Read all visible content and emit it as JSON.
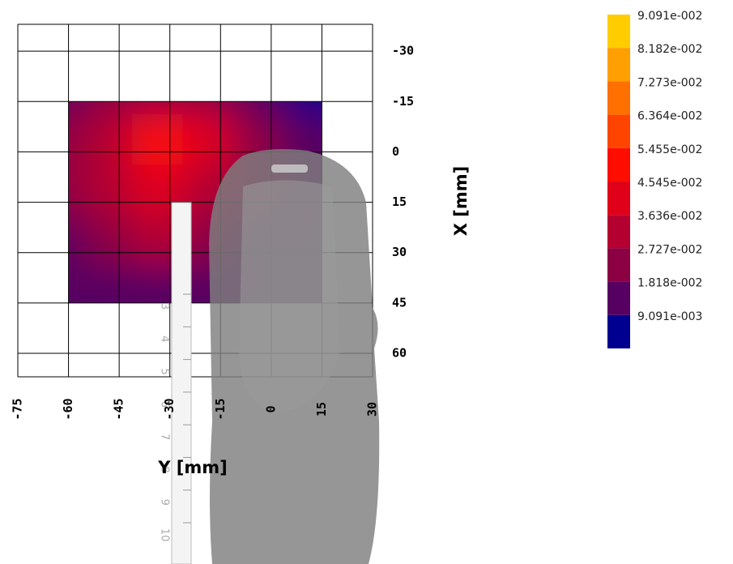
{
  "chart_data": {
    "type": "heatmap",
    "x_label": "Y [mm]",
    "y_label": "X [mm]",
    "xlim": [
      -75,
      30
    ],
    "xticks": [
      -75,
      -60,
      -45,
      -30,
      -15,
      0,
      15,
      30
    ],
    "ylim": [
      -38,
      67
    ],
    "yticks": [
      -30,
      -15,
      0,
      15,
      30,
      45,
      60
    ],
    "x": [
      -60,
      -45,
      -30,
      -15,
      0,
      15
    ],
    "y": [
      -15,
      0,
      15,
      30,
      45
    ],
    "z": [
      [
        0.018,
        0.022,
        0.025,
        0.022,
        0.012,
        0.009
      ],
      [
        0.025,
        0.033,
        0.05,
        0.04,
        0.02,
        0.01
      ],
      [
        0.025,
        0.035,
        0.042,
        0.033,
        0.02,
        0.015
      ],
      [
        0.018,
        0.025,
        0.028,
        0.025,
        0.018,
        0.015
      ],
      [
        0.012,
        0.015,
        0.015,
        0.015,
        0.012,
        0.012
      ]
    ],
    "grid": true,
    "colorbar": {
      "clim": [
        0,
        0.09091
      ],
      "ticks": [
        {
          "value": 0.09091,
          "label": "9.091e-002"
        },
        {
          "value": 0.08182,
          "label": "8.182e-002"
        },
        {
          "value": 0.07273,
          "label": "7.273e-002"
        },
        {
          "value": 0.06364,
          "label": "6.364e-002"
        },
        {
          "value": 0.05455,
          "label": "5.455e-002"
        },
        {
          "value": 0.04545,
          "label": "4.545e-002"
        },
        {
          "value": 0.03636,
          "label": "3.636e-002"
        },
        {
          "value": 0.02727,
          "label": "2.727e-002"
        },
        {
          "value": 0.01818,
          "label": "1.818e-002"
        },
        {
          "value": 0.009091,
          "label": "9.091e-003"
        }
      ],
      "colors": [
        "#ffcc00",
        "#ff9f00",
        "#ff7000",
        "#ff4400",
        "#ff0d00",
        "#e0001a",
        "#b40030",
        "#8c0044",
        "#560062",
        "#000090"
      ]
    },
    "ruler_ticks": [
      3,
      4,
      5,
      6,
      7,
      8,
      9,
      10
    ]
  }
}
